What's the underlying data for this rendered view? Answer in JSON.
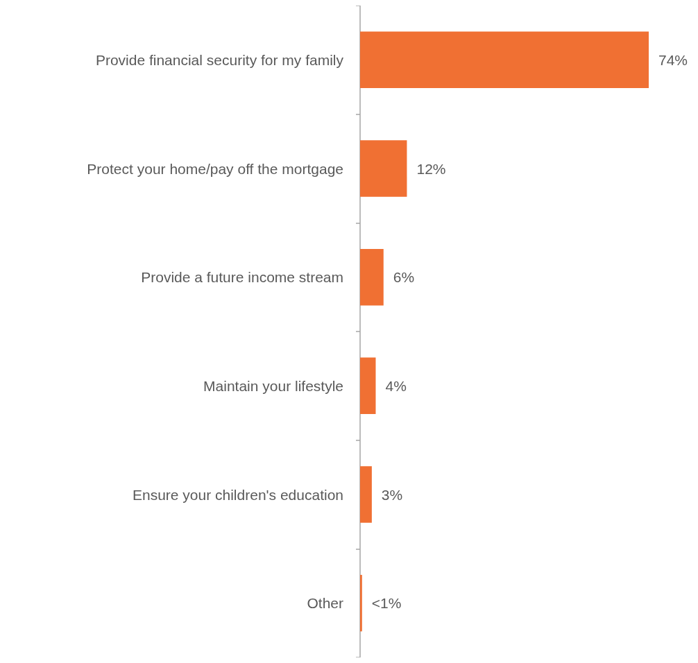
{
  "chart_data": {
    "type": "bar",
    "orientation": "horizontal",
    "categories": [
      "Provide financial security for my family",
      "Protect your home/pay off the mortgage",
      "Provide a future income stream",
      "Maintain your lifestyle",
      "Ensure your children's education",
      "Other"
    ],
    "values": [
      74,
      12,
      6,
      4,
      3,
      0.5
    ],
    "value_labels": [
      "74%",
      "12%",
      "6%",
      "4%",
      "3%",
      "<1%"
    ],
    "color": "#f07033"
  }
}
